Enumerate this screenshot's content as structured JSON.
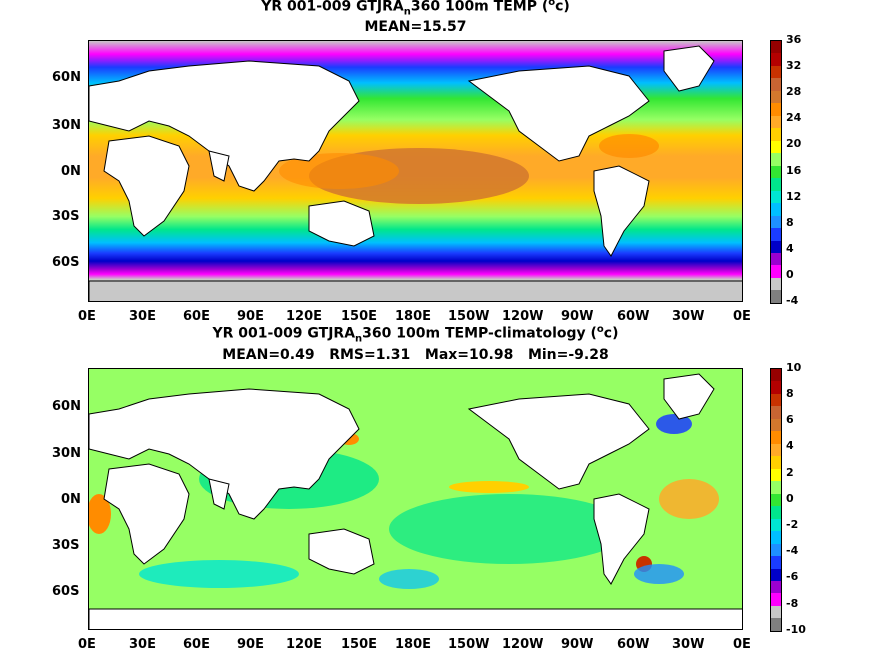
{
  "panels": [
    {
      "title_prefix": "YR 001-009 GTJRA",
      "title_sub": "n",
      "title_suffix": "360 100m TEMP (",
      "title_sup": "o",
      "title_end": "c)",
      "subtitle": "MEAN=15.57",
      "y_ticks": [
        "60N",
        "30N",
        "0N",
        "30S",
        "60S"
      ],
      "x_ticks": [
        "0E",
        "30E",
        "60E",
        "90E",
        "120E",
        "150E",
        "180E",
        "150W",
        "120W",
        "90W",
        "60W",
        "30W",
        "0E"
      ],
      "colorbar": {
        "labels": [
          "36",
          "32",
          "28",
          "24",
          "20",
          "16",
          "12",
          "8",
          "4",
          "0",
          "-4"
        ],
        "colors": [
          "#7f7f7f",
          "#c8c8c8",
          "#ff00ff",
          "#9c00d0",
          "#0000c8",
          "#1a3cff",
          "#1e90ff",
          "#00bfff",
          "#00e6d2",
          "#00e68c",
          "#33e633",
          "#96ff64",
          "#ffff00",
          "#ffd000",
          "#ffaa28",
          "#ff8c00",
          "#d2782d",
          "#c86432",
          "#c83200",
          "#b40000",
          "#960000"
        ]
      }
    },
    {
      "title_prefix": "YR 001-009 GTJRA",
      "title_sub": "n",
      "title_suffix": "360 100m TEMP-climatology (",
      "title_sup": "o",
      "title_end": "c)",
      "subtitle": "MEAN=0.49   RMS=1.31   Max=10.98   Min=-9.28",
      "y_ticks": [
        "60N",
        "30N",
        "0N",
        "30S",
        "60S"
      ],
      "x_ticks": [
        "0E",
        "30E",
        "60E",
        "90E",
        "120E",
        "150E",
        "180E",
        "150W",
        "120W",
        "90W",
        "60W",
        "30W",
        "0E"
      ],
      "colorbar": {
        "labels": [
          "10",
          "8",
          "6",
          "4",
          "2",
          "0",
          "-2",
          "-4",
          "-6",
          "-8",
          "-10"
        ],
        "colors": [
          "#7f7f7f",
          "#c8c8c8",
          "#ff00ff",
          "#9c00d0",
          "#0000c8",
          "#1a3cff",
          "#1e90ff",
          "#00bfff",
          "#00e6d2",
          "#00e68c",
          "#33e633",
          "#96ff64",
          "#ffff00",
          "#ffd000",
          "#ffaa28",
          "#ff8c00",
          "#d2782d",
          "#c86432",
          "#c83200",
          "#b40000",
          "#960000"
        ]
      }
    }
  ]
}
